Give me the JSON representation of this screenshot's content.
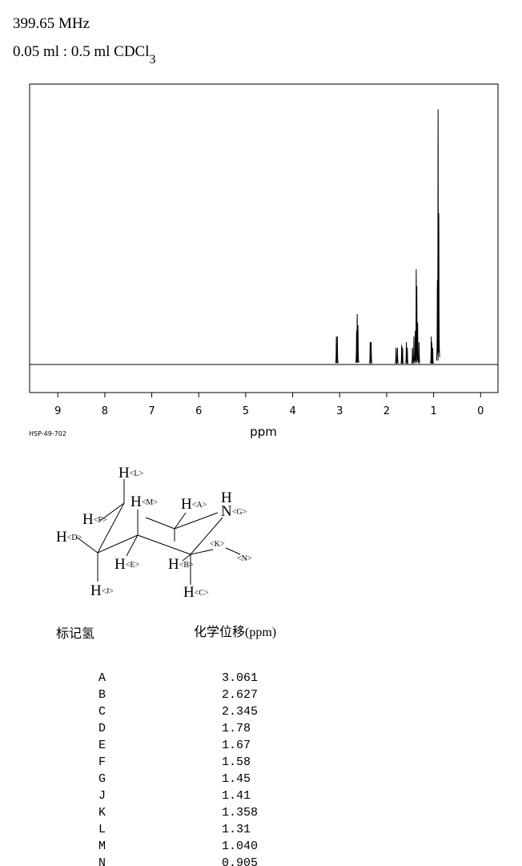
{
  "header": {
    "line1": "399.65 MHz",
    "line2": "0.05 ml : 0.5 ml CDCl",
    "line2_sub": "3"
  },
  "chart_data": {
    "type": "spectrum",
    "xlabel": "ppm",
    "code": "HSP-49-702",
    "color": "#000000",
    "xlim": [
      9.6,
      -0.37
    ],
    "xticks": [
      9,
      8,
      7,
      6,
      5,
      4,
      3,
      2,
      1,
      0
    ],
    "ylim": [
      -10,
      100
    ],
    "peaks": {
      "x": [
        3.07,
        3.05,
        2.64,
        2.627,
        2.61,
        2.35,
        2.33,
        1.8,
        1.77,
        1.68,
        1.66,
        1.58,
        1.56,
        1.45,
        1.42,
        1.39,
        1.37,
        1.358,
        1.34,
        1.31,
        1.05,
        1.04,
        1.02,
        0.92,
        0.905,
        0.89
      ],
      "values": [
        10,
        10,
        12,
        18,
        14,
        8,
        8,
        6,
        6,
        7,
        6,
        8,
        6,
        6,
        10,
        12,
        34,
        28,
        15,
        8,
        10,
        8,
        6,
        30,
        91,
        54
      ]
    }
  },
  "structure": {
    "labels": [
      {
        "text": "H",
        "tag": "<L>"
      },
      {
        "text": "H",
        "tag": "<M>"
      },
      {
        "text": "H",
        "tag": "<A>"
      },
      {
        "text": "H",
        "tag": ""
      },
      {
        "text": "N",
        "tag": "<G>"
      },
      {
        "text": "H",
        "tag": "<F>"
      },
      {
        "text": "H",
        "tag": "<D>"
      },
      {
        "text": "",
        "tag": "<K>"
      },
      {
        "text": "",
        "tag": "<N>"
      },
      {
        "text": "H",
        "tag": "<E>"
      },
      {
        "text": "H",
        "tag": "<B>"
      },
      {
        "text": "H",
        "tag": "<J>"
      },
      {
        "text": "H",
        "tag": "<C>"
      }
    ]
  },
  "table": {
    "columns": [
      "标记氢",
      "化学位移(ppm)"
    ],
    "rows": [
      [
        "A",
        "3.061"
      ],
      [
        "B",
        "2.627"
      ],
      [
        "C",
        "2.345"
      ],
      [
        "D",
        "1.78"
      ],
      [
        "E",
        "1.67"
      ],
      [
        "F",
        "1.58"
      ],
      [
        "G",
        "1.45"
      ],
      [
        "J",
        "1.41"
      ],
      [
        "K",
        "1.358"
      ],
      [
        "L",
        "1.31"
      ],
      [
        "M",
        "1.040"
      ],
      [
        "N",
        "0.905"
      ]
    ]
  }
}
